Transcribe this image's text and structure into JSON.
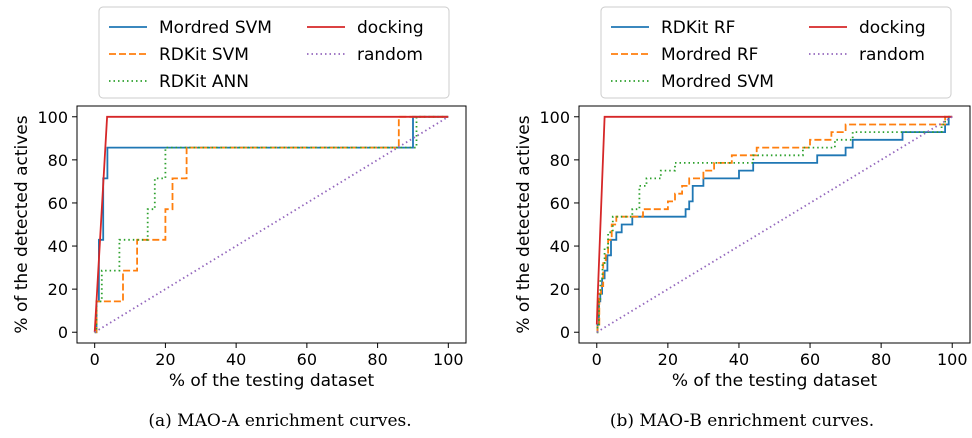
{
  "chart_data": [
    {
      "type": "line",
      "caption": "(a) MAO-A enrichment curves.",
      "xlabel": "% of the testing dataset",
      "ylabel": "% of the detected actives",
      "xlim": [
        -5,
        105
      ],
      "ylim": [
        -5,
        105
      ],
      "xticks": [
        "0",
        "20",
        "40",
        "60",
        "80",
        "100"
      ],
      "yticks": [
        "0",
        "20",
        "40",
        "60",
        "80",
        "100"
      ],
      "grid": false,
      "legend": "above-plot",
      "series": [
        {
          "name": "Mordred SVM",
          "color": "#1f77b4",
          "style": "solid",
          "x": [
            0,
            0.5,
            0.5,
            1.2,
            1.2,
            2.4,
            2.4,
            3.6,
            3.6,
            5.5,
            5.5,
            90,
            90,
            100
          ],
          "y": [
            0,
            0,
            14.3,
            14.3,
            42.9,
            42.9,
            71.4,
            71.4,
            85.7,
            85.7,
            85.7,
            85.7,
            100,
            100
          ]
        },
        {
          "name": "RDKit SVM",
          "color": "#ff7f0e",
          "style": "dashed",
          "x": [
            0,
            0.5,
            0.5,
            4,
            4,
            8,
            8,
            12,
            12,
            20,
            20,
            22,
            22,
            26,
            26,
            85,
            85,
            86,
            86,
            100
          ],
          "y": [
            0,
            0,
            14.3,
            14.3,
            14.3,
            14.3,
            28.6,
            28.6,
            42.9,
            42.9,
            57.1,
            57.1,
            71.4,
            71.4,
            85.7,
            85.7,
            85.7,
            85.7,
            100,
            100
          ]
        },
        {
          "name": "RDKit ANN",
          "color": "#2ca02c",
          "style": "dotted",
          "x": [
            0,
            0.5,
            0.5,
            2,
            2,
            7,
            7,
            15,
            15,
            17,
            17,
            20,
            20,
            90,
            90,
            91,
            91,
            100
          ],
          "y": [
            0,
            0,
            14.3,
            14.3,
            28.6,
            28.6,
            42.9,
            42.9,
            57.1,
            57.1,
            71.4,
            71.4,
            85.7,
            85.7,
            85.7,
            85.7,
            100,
            100
          ]
        },
        {
          "name": "docking",
          "color": "#d62728",
          "style": "solid",
          "x": [
            0,
            0.5,
            3.5,
            100
          ],
          "y": [
            0,
            14.3,
            100,
            100
          ]
        },
        {
          "name": "random",
          "color": "#9467bd",
          "style": "dotted",
          "x": [
            0,
            100
          ],
          "y": [
            0,
            100
          ]
        }
      ],
      "legend_columns": [
        [
          "Mordred SVM",
          "RDKit SVM",
          "RDKit ANN"
        ],
        [
          "docking",
          "random"
        ]
      ]
    },
    {
      "type": "line",
      "caption": "(b) MAO-B enrichment curves.",
      "xlabel": "% of the testing dataset",
      "ylabel": "% of the detected actives",
      "xlim": [
        -5,
        105
      ],
      "ylim": [
        -5,
        105
      ],
      "xticks": [
        "0",
        "20",
        "40",
        "60",
        "80",
        "100"
      ],
      "yticks": [
        "0",
        "20",
        "40",
        "60",
        "80",
        "100"
      ],
      "grid": false,
      "legend": "above-plot",
      "series": [
        {
          "name": "RDKit RF",
          "color": "#1f77b4",
          "style": "solid",
          "x": [
            0,
            0.2,
            0.2,
            0.6,
            0.6,
            1,
            1,
            1.5,
            1.5,
            2.2,
            2.2,
            3,
            3,
            4,
            4,
            5.5,
            5.5,
            7,
            7,
            10,
            10,
            14,
            14,
            25,
            25,
            26,
            26,
            27,
            27,
            30,
            30,
            35,
            35,
            40,
            40,
            44,
            44,
            62,
            62,
            70,
            70,
            72,
            72,
            86,
            86,
            98,
            98,
            99,
            99,
            100
          ],
          "y": [
            0,
            0,
            3.6,
            3.6,
            14.3,
            14.3,
            17.9,
            17.9,
            25,
            25,
            28.6,
            28.6,
            35.7,
            35.7,
            42.9,
            42.9,
            46.4,
            46.4,
            50,
            50,
            53.6,
            53.6,
            53.6,
            53.6,
            57.1,
            57.1,
            60.7,
            60.7,
            67.9,
            67.9,
            71.4,
            71.4,
            71.4,
            71.4,
            75,
            75,
            78.6,
            78.6,
            82.1,
            82.1,
            85.7,
            85.7,
            89.3,
            89.3,
            92.9,
            92.9,
            96.4,
            96.4,
            100,
            100
          ]
        },
        {
          "name": "Mordred RF",
          "color": "#ff7f0e",
          "style": "dashed",
          "x": [
            0,
            0.2,
            0.2,
            0.7,
            0.7,
            1.2,
            1.2,
            1.8,
            1.8,
            2.5,
            2.5,
            3.2,
            3.2,
            4.2,
            4.2,
            5.5,
            5.5,
            13,
            13,
            20,
            20,
            22,
            22,
            24,
            24,
            26,
            26,
            30,
            30,
            33,
            33,
            38,
            38,
            45,
            45,
            50,
            50,
            60,
            60,
            64,
            64,
            66,
            66,
            70,
            70,
            80,
            80,
            98,
            98,
            100
          ],
          "y": [
            0,
            0,
            3.6,
            3.6,
            17.9,
            17.9,
            21.4,
            21.4,
            32.1,
            32.1,
            35.7,
            35.7,
            42.9,
            42.9,
            50,
            50,
            53.6,
            53.6,
            57.1,
            57.1,
            60.7,
            60.7,
            64.3,
            64.3,
            67.9,
            67.9,
            71.4,
            71.4,
            75,
            75,
            78.6,
            78.6,
            82.1,
            82.1,
            85.7,
            85.7,
            85.7,
            85.7,
            89.3,
            89.3,
            89.3,
            89.3,
            92.9,
            92.9,
            96.4,
            96.4,
            96.4,
            96.4,
            100,
            100
          ]
        },
        {
          "name": "Mordred SVM",
          "color": "#2ca02c",
          "style": "dotted",
          "x": [
            0,
            0.2,
            0.2,
            0.6,
            0.6,
            1,
            1,
            1.6,
            1.6,
            2.2,
            2.2,
            3.2,
            3.2,
            4.5,
            4.5,
            8,
            8,
            10,
            10,
            12,
            12,
            14,
            14,
            18,
            18,
            22,
            22,
            30,
            30,
            44,
            44,
            58,
            58,
            67,
            67,
            72,
            72,
            97,
            97,
            98,
            98,
            100
          ],
          "y": [
            0,
            0,
            3.6,
            3.6,
            14.3,
            14.3,
            25,
            25,
            32.1,
            32.1,
            39.3,
            39.3,
            46.4,
            46.4,
            53.6,
            53.6,
            53.6,
            53.6,
            57.1,
            57.1,
            67.9,
            67.9,
            71.4,
            71.4,
            75,
            75,
            78.6,
            78.6,
            78.6,
            78.6,
            82.1,
            82.1,
            85.7,
            85.7,
            89.3,
            89.3,
            92.9,
            92.9,
            96.4,
            96.4,
            100,
            100
          ]
        },
        {
          "name": "docking",
          "color": "#d62728",
          "style": "solid",
          "x": [
            0,
            0.3,
            2.2,
            100
          ],
          "y": [
            3.6,
            17.9,
            100,
            100
          ]
        },
        {
          "name": "random",
          "color": "#9467bd",
          "style": "dotted",
          "x": [
            0,
            100
          ],
          "y": [
            0,
            100
          ]
        }
      ],
      "legend_columns": [
        [
          "RDKit RF",
          "Mordred RF",
          "Mordred SVM"
        ],
        [
          "docking",
          "random"
        ]
      ]
    }
  ]
}
